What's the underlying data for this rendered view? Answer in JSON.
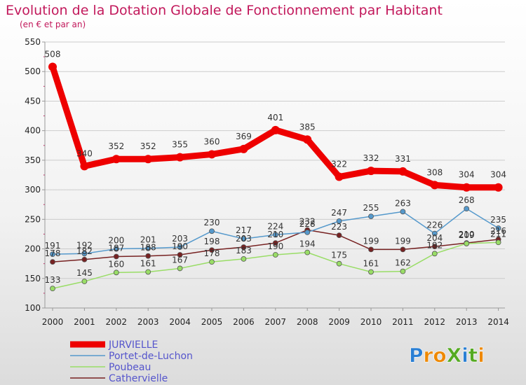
{
  "chart_data": {
    "type": "line",
    "title": "Evolution de la Dotation Globale de Fonctionnement par Habitant",
    "subtitle": "(en € et par an)",
    "xlabel": "",
    "ylabel": "",
    "categories": [
      "2000",
      "2001",
      "2002",
      "2003",
      "2004",
      "2005",
      "2006",
      "2007",
      "2008",
      "2009",
      "2010",
      "2011",
      "2012",
      "2013",
      "2014"
    ],
    "yticks": [
      100,
      150,
      200,
      250,
      300,
      350,
      400,
      450,
      500,
      550
    ],
    "ylim": [
      100,
      550
    ],
    "series": [
      {
        "name": "JURVIELLE",
        "color": "#ee0000",
        "values": [
          508,
          340,
          352,
          352,
          355,
          360,
          369,
          401,
          385,
          322,
          332,
          331,
          308,
          304,
          304
        ]
      },
      {
        "name": "Portet-de-Luchon",
        "color": "#5599cc",
        "values": [
          191,
          192,
          200,
          201,
          203,
          230,
          217,
          224,
          228,
          247,
          255,
          263,
          226,
          268,
          235
        ]
      },
      {
        "name": "Poubeau",
        "color": "#99dd66",
        "values": [
          133,
          145,
          160,
          161,
          167,
          178,
          183,
          190,
          194,
          175,
          161,
          162,
          192,
          209,
          211
        ]
      },
      {
        "name": "Cathervielle",
        "color": "#772222",
        "values": [
          178,
          182,
          187,
          188,
          190,
          198,
          203,
          210,
          232,
          223,
          199,
          199,
          204,
          210,
          216
        ]
      }
    ]
  },
  "logo": {
    "text": "ProXiti"
  }
}
